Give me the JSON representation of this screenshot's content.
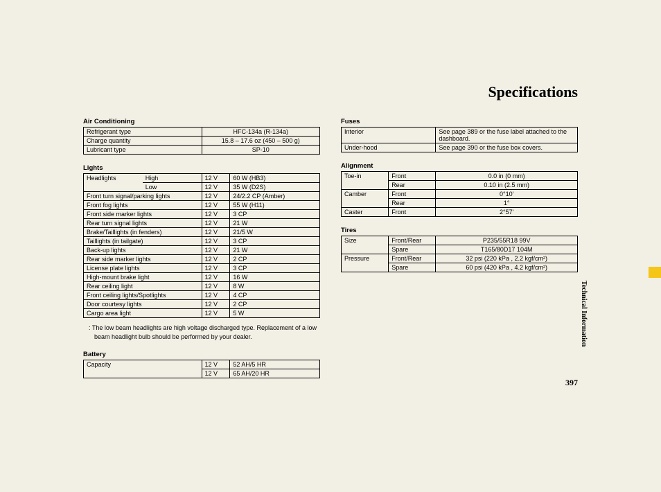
{
  "title": "Specifications",
  "sideText": "Technical Information",
  "pageNumber": "397",
  "ac": {
    "title": "Air Conditioning",
    "rows": [
      [
        "Refrigerant type",
        "HFC-134a (R-134a)"
      ],
      [
        "Charge quantity",
        "15.8 – 17.6 oz (450 – 500 g)"
      ],
      [
        "Lubricant type",
        "SP-10"
      ]
    ]
  },
  "lights": {
    "title": "Lights",
    "rows": [
      {
        "a": "Headlights",
        "b": "High",
        "c": "12 V",
        "d": "60 W (HB3)",
        "aTop": true
      },
      {
        "a": "",
        "b": "Low",
        "c": "12 V",
        "d": "35 W (D2S)",
        "aMid": true
      },
      {
        "a": "Front turn signal/parking lights",
        "b": "",
        "c": "12 V",
        "d": "24/2.2 CP (Amber)"
      },
      {
        "a": "Front fog lights",
        "b": "",
        "c": "12 V",
        "d": "55 W (H11)"
      },
      {
        "a": "Front side marker lights",
        "b": "",
        "c": "12 V",
        "d": "3 CP"
      },
      {
        "a": "Rear turn signal lights",
        "b": "",
        "c": "12 V",
        "d": "21 W"
      },
      {
        "a": "Brake/Taillights (in fenders)",
        "b": "",
        "c": "12 V",
        "d": "21/5 W"
      },
      {
        "a": "Taillights (in tailgate)",
        "b": "",
        "c": "12 V",
        "d": "3 CP"
      },
      {
        "a": "Back-up lights",
        "b": "",
        "c": "12 V",
        "d": "21 W"
      },
      {
        "a": "Rear side marker lights",
        "b": "",
        "c": "12 V",
        "d": "2 CP"
      },
      {
        "a": "License plate lights",
        "b": "",
        "c": "12 V",
        "d": "3 CP"
      },
      {
        "a": "High-mount brake light",
        "b": "",
        "c": "12 V",
        "d": "16 W"
      },
      {
        "a": "Rear ceiling light",
        "b": "",
        "c": "12 V",
        "d": "8 W"
      },
      {
        "a": "Front ceiling lights/Spotlights",
        "b": "",
        "c": "12 V",
        "d": "4 CP"
      },
      {
        "a": "Door courtesy lights",
        "b": "",
        "c": "12 V",
        "d": "2 CP"
      },
      {
        "a": "Cargo area light",
        "b": "",
        "c": "12 V",
        "d": "5 W"
      }
    ],
    "note": ": The low beam headlights are high voltage discharged type. Replacement of a low beam headlight bulb should be performed by your dealer."
  },
  "battery": {
    "title": "Battery",
    "rows": [
      {
        "a": "Capacity",
        "c": "12 V",
        "d": "52 AH/5 HR",
        "top": true
      },
      {
        "a": "",
        "c": "12 V",
        "d": "65 AH/20 HR"
      }
    ]
  },
  "fuses": {
    "title": "Fuses",
    "rows": [
      [
        "Interior",
        "See page 389 or the fuse label attached to the dashboard."
      ],
      [
        "Under-hood",
        "See page 390 or the fuse box covers."
      ]
    ]
  },
  "alignment": {
    "title": "Alignment",
    "rows": [
      {
        "a": "Toe-in",
        "b": "Front",
        "c": "0.0 in (0 mm)",
        "aTop": true
      },
      {
        "a": "",
        "b": "Rear",
        "c": "0.10 in (2.5 mm)"
      },
      {
        "a": "Camber",
        "b": "Front",
        "c": "0°10'",
        "aTop": true
      },
      {
        "a": "",
        "b": "Rear",
        "c": "1°"
      },
      {
        "a": "Caster",
        "b": "Front",
        "c": "2°57'"
      }
    ]
  },
  "tires": {
    "title": "Tires",
    "rows": [
      {
        "a": "Size",
        "b": "Front/Rear",
        "c": "P235/55R18 99V",
        "aTop": true
      },
      {
        "a": "",
        "b": "Spare",
        "c": "T165/80D17 104M"
      },
      {
        "a": "Pressure",
        "b": "Front/Rear",
        "c": "32 psi (220 kPa , 2.2 kgf/cm²)",
        "aTop": true
      },
      {
        "a": "",
        "b": "Spare",
        "c": "60 psi (420 kPa , 4.2 kgf/cm²)"
      }
    ]
  }
}
